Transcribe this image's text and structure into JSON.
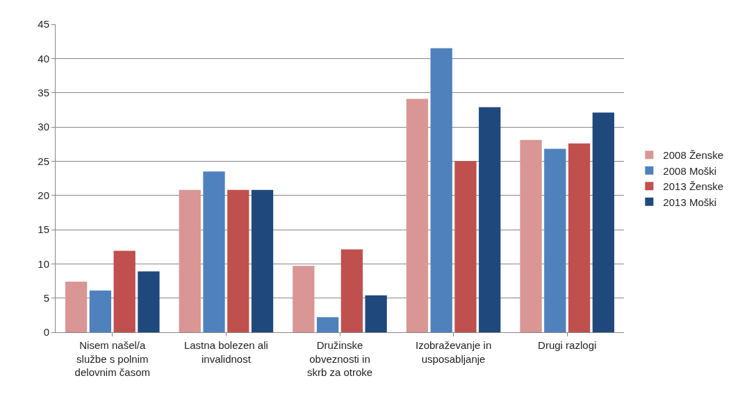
{
  "chart_data": {
    "type": "bar",
    "categories": [
      "Nisem našel/a\nslužbe s polnim\ndelovnim časom",
      "Lastna bolezen ali\ninvalidnost",
      "Družinske\nobveznosti in\nskrb za otroke",
      "Izobraževanje in\nusposabljanje",
      "Drugi razlogi"
    ],
    "series": [
      {
        "name": "2008 Ženske",
        "color": "#d99694",
        "values": [
          7.4,
          20.8,
          9.7,
          34.1,
          28.1
        ]
      },
      {
        "name": "2008 Moški",
        "color": "#4f81bd",
        "values": [
          6.1,
          23.5,
          2.2,
          41.5,
          26.8
        ]
      },
      {
        "name": "2013 Ženske",
        "color": "#c0504d",
        "values": [
          11.9,
          20.8,
          12.1,
          25.0,
          27.6
        ]
      },
      {
        "name": "2013 Moški",
        "color": "#1f497d",
        "values": [
          8.9,
          20.8,
          5.4,
          32.9,
          32.1
        ]
      }
    ],
    "ylim": [
      0,
      45
    ],
    "yticks": [
      0,
      5,
      10,
      15,
      20,
      25,
      30,
      35,
      40,
      45
    ],
    "grid": "y",
    "legend": "right"
  }
}
